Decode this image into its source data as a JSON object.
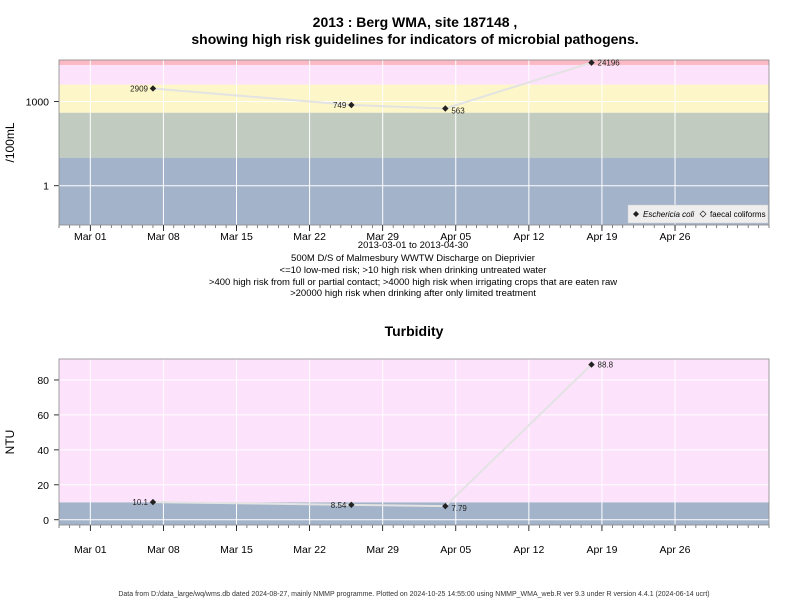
{
  "title_line1": "2013 : Berg WMA, site 187148 ,",
  "title_line2": "showing high risk guidelines for indicators of microbial pathogens.",
  "captions": [
    "2013-03-01 to 2013-04-30",
    "500M D/S of Malmesbury WWTW Discharge on Dieprivier",
    "<=10 low-med risk; >10 high risk when drinking untreated water",
    ">400 high risk from full or partial contact; >4000 high risk when irrigating crops that are eaten raw",
    ">20000 high risk when drinking after only limited treatment"
  ],
  "turbidity_title": "Turbidity",
  "footer": "Data from D:/data_large/wq/wms.db dated 2024-08-27, mainly NMMP programme. Plotted on 2024-10-25 14:55:00 using NMMP_WMA_web.R ver 9.3 under R version 4.4.1 (2024-06-14 ucrt)",
  "colors": {
    "band_blue": "#a3b3ca",
    "band_grey": "#c2cbc0",
    "band_yellow": "#fdf6c8",
    "band_pink": "#fde2fc",
    "band_red": "#fbb8c5",
    "line": "#e3e3e3",
    "grid": "#ffffff",
    "point": "#222222"
  },
  "chart_data": [
    {
      "type": "scatter",
      "name": "microbial",
      "ylabel": "/100mL",
      "yscale": "log10",
      "ylim": [
        0.04,
        30000
      ],
      "xlim": [
        "2013-02-26",
        "2013-05-05"
      ],
      "x_ticks": [
        "Mar 01",
        "Mar 08",
        "Mar 15",
        "Mar 22",
        "Mar 29",
        "Apr 05",
        "Apr 12",
        "Apr 19",
        "Apr 26"
      ],
      "y_ticks": [
        "1",
        "1000"
      ],
      "y_tick_values": [
        1,
        1000
      ],
      "guideline_bands": [
        {
          "from": 0.04,
          "to": 10,
          "color": "band_blue"
        },
        {
          "from": 10,
          "to": 400,
          "color": "band_grey"
        },
        {
          "from": 400,
          "to": 4000,
          "color": "band_yellow"
        },
        {
          "from": 4000,
          "to": 20000,
          "color": "band_pink"
        },
        {
          "from": 20000,
          "to": 30000,
          "color": "band_red"
        }
      ],
      "series": [
        {
          "name": "Eschericia coli",
          "points": [
            {
              "x": "2013-03-07",
              "y": 2909,
              "label": "2909"
            },
            {
              "x": "2013-03-26",
              "y": 749,
              "label": "749"
            },
            {
              "x": "2013-04-04",
              "y": 563,
              "label": "563"
            },
            {
              "x": "2013-04-18",
              "y": 24196,
              "label": "24196"
            }
          ]
        }
      ],
      "legend": {
        "position": "bottom-right",
        "entries": [
          "Eschericia coli",
          "faecal coliforms"
        ]
      },
      "grid": true
    },
    {
      "type": "scatter",
      "name": "turbidity",
      "title": "Turbidity",
      "ylabel": "NTU",
      "ylim": [
        -3,
        92
      ],
      "xlim": [
        "2013-02-26",
        "2013-05-05"
      ],
      "x_ticks": [
        "Mar 01",
        "Mar 08",
        "Mar 15",
        "Mar 22",
        "Mar 29",
        "Apr 05",
        "Apr 12",
        "Apr 19",
        "Apr 26"
      ],
      "y_ticks": [
        "0",
        "20",
        "40",
        "60",
        "80"
      ],
      "y_tick_values": [
        0,
        20,
        40,
        60,
        80
      ],
      "guideline_bands": [
        {
          "from": -3,
          "to": 10,
          "color": "band_blue"
        },
        {
          "from": 10,
          "to": 92,
          "color": "band_pink"
        }
      ],
      "series": [
        {
          "name": "Turbidity",
          "points": [
            {
              "x": "2013-03-07",
              "y": 10.1,
              "label": "10.1"
            },
            {
              "x": "2013-03-26",
              "y": 8.54,
              "label": "8.54"
            },
            {
              "x": "2013-04-04",
              "y": 7.79,
              "label": "7.79"
            },
            {
              "x": "2013-04-18",
              "y": 88.8,
              "label": "88.8"
            }
          ]
        }
      ],
      "grid": true
    }
  ]
}
